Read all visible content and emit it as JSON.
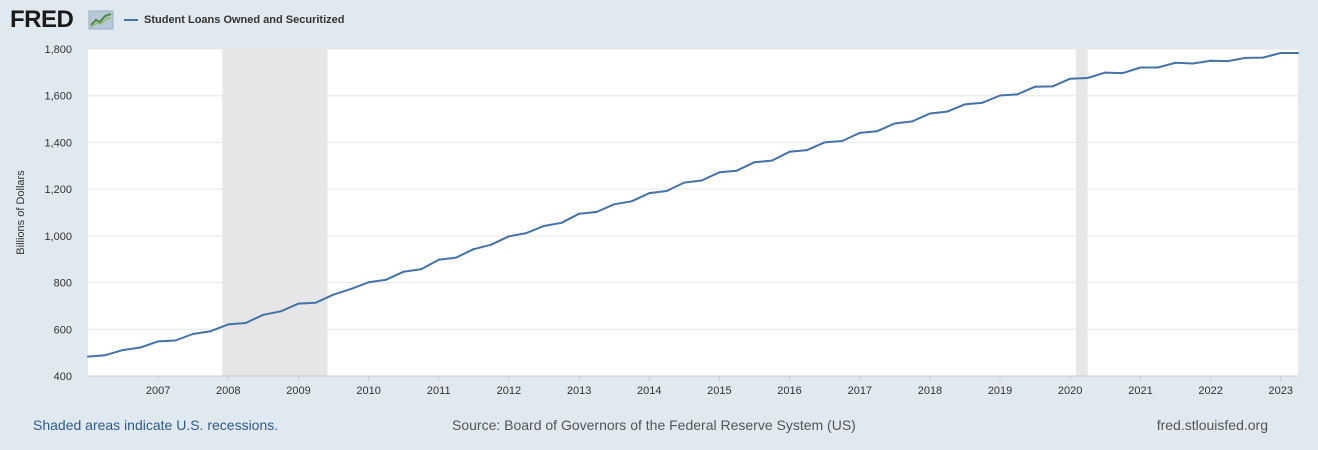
{
  "header": {
    "logo_text": "FRED",
    "logo_icon": "fred-chart-icon"
  },
  "footer": {
    "recessions_note": "Shaded areas indicate U.S. recessions.",
    "source": "Source: Board of Governors of the Federal Reserve System (US)",
    "site": "fred.stlouisfed.org"
  },
  "colors": {
    "background": "#e1e9f0",
    "plot_background": "#ffffff",
    "series": "#4572a7",
    "recession": "#e6e6e6",
    "gridline": "#e6e6e6",
    "link": "#2d5a8e"
  },
  "chart_data": {
    "type": "line",
    "title": "",
    "xlabel": "",
    "ylabel": "Billions of Dollars",
    "ylim": [
      400,
      1800
    ],
    "xlim": [
      "2006-01-01",
      "2023-04-01"
    ],
    "grid": true,
    "legend_position": "top-left",
    "x_tick_labels": [
      "2007",
      "2008",
      "2009",
      "2010",
      "2011",
      "2012",
      "2013",
      "2014",
      "2015",
      "2016",
      "2017",
      "2018",
      "2019",
      "2020",
      "2021",
      "2022",
      "2023"
    ],
    "y_tick_labels": [
      "400",
      "600",
      "800",
      "1,000",
      "1,200",
      "1,400",
      "1,600",
      "1,800"
    ],
    "y_ticks": [
      400,
      600,
      800,
      1000,
      1200,
      1400,
      1600,
      1800
    ],
    "recessions": [
      {
        "start": "2007-12-01",
        "end": "2009-06-01"
      },
      {
        "start": "2020-02-01",
        "end": "2020-04-01"
      }
    ],
    "series": [
      {
        "name": "Student Loans Owned and Securitized",
        "x": [
          "2006-01-01",
          "2006-04-01",
          "2006-07-01",
          "2006-10-01",
          "2007-01-01",
          "2007-04-01",
          "2007-07-01",
          "2007-10-01",
          "2008-01-01",
          "2008-04-01",
          "2008-07-01",
          "2008-10-01",
          "2009-01-01",
          "2009-04-01",
          "2009-07-01",
          "2009-10-01",
          "2010-01-01",
          "2010-04-01",
          "2010-07-01",
          "2010-10-01",
          "2011-01-01",
          "2011-04-01",
          "2011-07-01",
          "2011-10-01",
          "2012-01-01",
          "2012-04-01",
          "2012-07-01",
          "2012-10-01",
          "2013-01-01",
          "2013-04-01",
          "2013-07-01",
          "2013-10-01",
          "2014-01-01",
          "2014-04-01",
          "2014-07-01",
          "2014-10-01",
          "2015-01-01",
          "2015-04-01",
          "2015-07-01",
          "2015-10-01",
          "2016-01-01",
          "2016-04-01",
          "2016-07-01",
          "2016-10-01",
          "2017-01-01",
          "2017-04-01",
          "2017-07-01",
          "2017-10-01",
          "2018-01-01",
          "2018-04-01",
          "2018-07-01",
          "2018-10-01",
          "2019-01-01",
          "2019-04-01",
          "2019-07-01",
          "2019-10-01",
          "2020-01-01",
          "2020-04-01",
          "2020-07-01",
          "2020-10-01",
          "2021-01-01",
          "2021-04-01",
          "2021-07-01",
          "2021-10-01",
          "2022-01-01",
          "2022-04-01",
          "2022-07-01",
          "2022-10-01",
          "2023-01-01",
          "2023-04-01"
        ],
        "values": [
          483,
          489,
          511,
          522,
          548,
          552,
          580,
          592,
          621,
          627,
          662,
          677,
          710,
          714,
          748,
          773,
          801,
          812,
          846,
          857,
          898,
          907,
          943,
          962,
          998,
          1012,
          1042,
          1056,
          1095,
          1102,
          1135,
          1148,
          1183,
          1192,
          1228,
          1237,
          1272,
          1279,
          1315,
          1322,
          1360,
          1367,
          1400,
          1406,
          1441,
          1448,
          1481,
          1490,
          1524,
          1532,
          1563,
          1570,
          1601,
          1606,
          1638,
          1640,
          1673,
          1676,
          1699,
          1697,
          1721,
          1721,
          1741,
          1738,
          1750,
          1748,
          1762,
          1763,
          1783,
          1783
        ]
      }
    ]
  }
}
